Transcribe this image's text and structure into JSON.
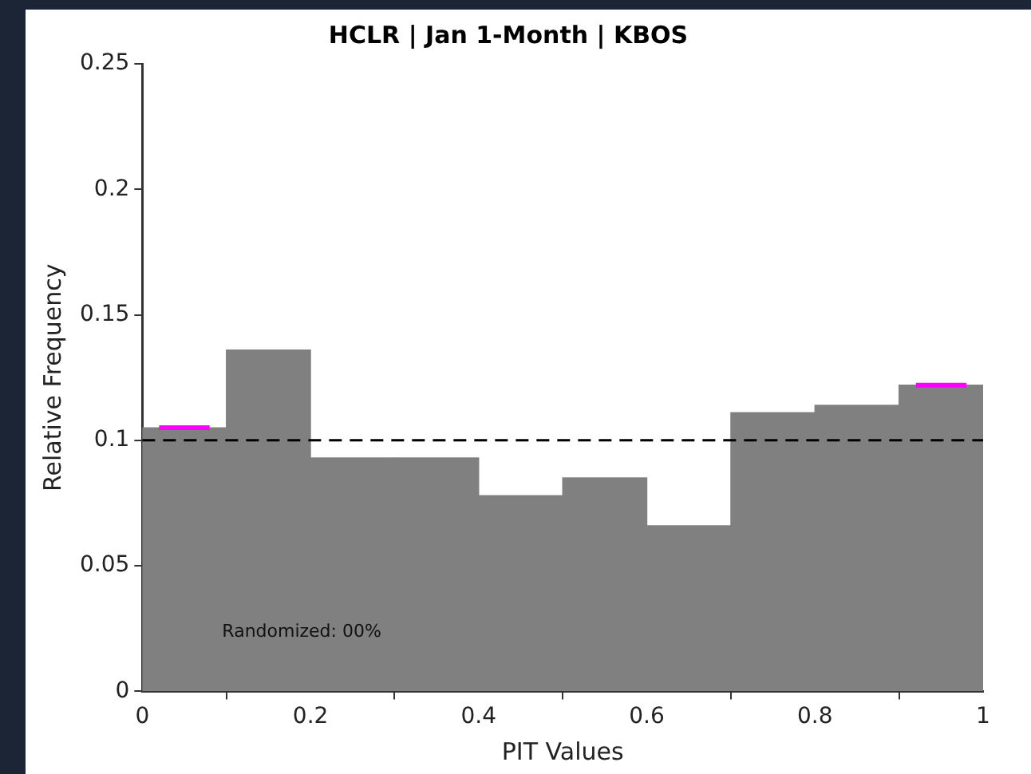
{
  "chart_data": {
    "type": "histogram",
    "title": "HCLR | Jan 1-Month | KBOS",
    "xlabel": "PIT Values",
    "ylabel": "Relative Frequency",
    "bins": [
      0,
      0.1,
      0.2,
      0.3,
      0.4,
      0.5,
      0.6,
      0.7,
      0.8,
      0.9,
      1
    ],
    "values": [
      0.105,
      0.136,
      0.093,
      0.093,
      0.078,
      0.085,
      0.066,
      0.111,
      0.114,
      0.122
    ],
    "color": "#808080",
    "series": [
      {
        "type": "line",
        "color": "#ff00ff",
        "x": [
          0.02,
          0.08,
          0.5,
          0.92,
          0.98
        ],
        "values": [
          0.105,
          0.105,
          null,
          0.122,
          0.122
        ]
      }
    ],
    "xlim": [
      0,
      1
    ],
    "xticks": [
      0,
      0.2,
      0.4,
      0.6,
      0.8,
      1
    ],
    "ylim": [
      0,
      0.25
    ],
    "yticks": [
      0,
      0.05,
      0.1,
      0.15,
      0.2,
      0.25
    ],
    "ref_lines": [
      {
        "axis": "y",
        "value": 0.1,
        "color": "#000000",
        "line_style": "dashed"
      }
    ],
    "annotations": [
      "Randomized: 00%"
    ],
    "grid": false,
    "legend": false
  }
}
